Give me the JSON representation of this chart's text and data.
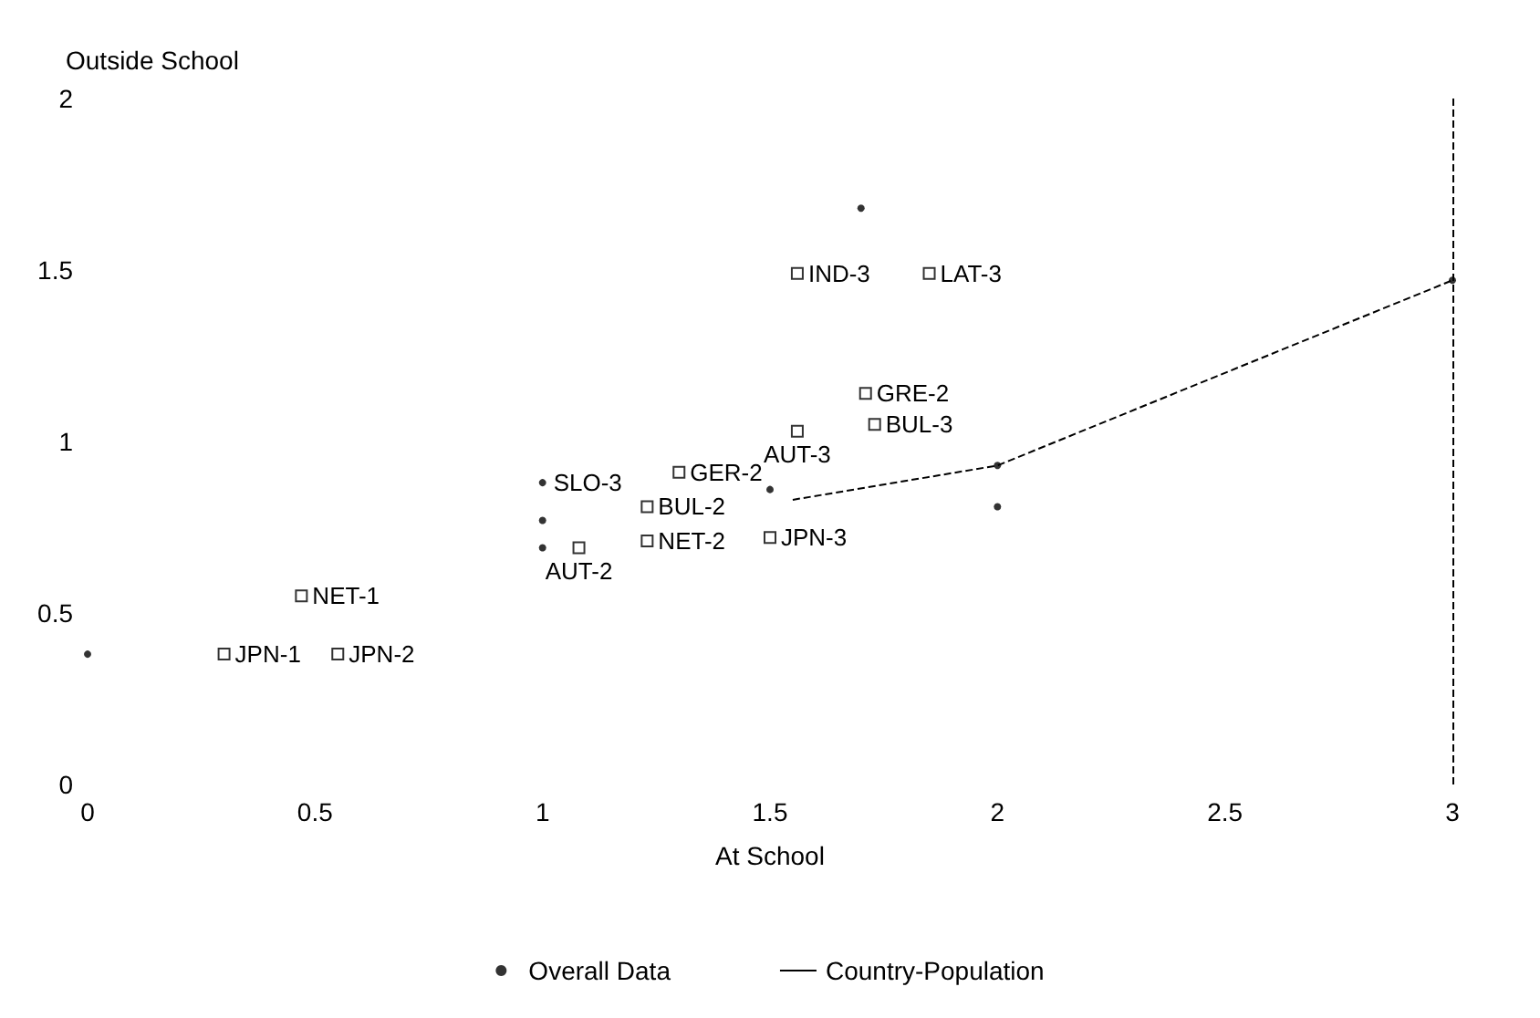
{
  "chart_data": {
    "type": "scatter",
    "xlabel": "At School",
    "ylabel": "Outside School",
    "xlim": [
      0,
      3
    ],
    "xticks": [
      0,
      0.5,
      1,
      1.5,
      2,
      2.5,
      3
    ],
    "ylim": [
      0,
      2
    ],
    "yticks": [
      0,
      0.5,
      1,
      1.5,
      2
    ],
    "grid": false,
    "legend": "bottom",
    "series": [
      {
        "name": "Overall Data",
        "marker": "circle",
        "color": "#000000",
        "x": [
          0,
          1,
          1,
          1,
          1.5,
          1.7,
          2,
          2,
          3
        ],
        "values": [
          0.38,
          0.88,
          0.77,
          0.69,
          0.86,
          1.68,
          0.81,
          0.93,
          1.47
        ]
      },
      {
        "name": "Country-Population",
        "type": "line",
        "marker": "none",
        "line_style": "dashed",
        "color": "#000000",
        "x": [
          1.55,
          2,
          3
        ],
        "values": [
          0.83,
          0.93,
          1.47
        ]
      },
      {
        "marker": "square",
        "color": "#000000",
        "x": [
          0.3,
          0.55,
          0.47,
          1.08,
          1.3,
          1.23,
          1.23,
          1.5,
          1.56,
          1.56,
          1.71,
          1.73,
          1.85
        ],
        "values": [
          0.38,
          0.38,
          0.55,
          0.69,
          0.91,
          0.81,
          0.71,
          0.72,
          1.49,
          1.03,
          1.14,
          1.05,
          1.49
        ]
      }
    ],
    "ref_lines": [
      {
        "axis": "x",
        "value": 3,
        "line_style": "dashed",
        "color": "#000000"
      }
    ],
    "annotations": [
      {
        "text": "JPN-1",
        "x": 0.3,
        "y": 0.38
      },
      {
        "text": "JPN-2",
        "x": 0.55,
        "y": 0.38
      },
      {
        "text": "NET-1",
        "x": 0.47,
        "y": 0.55
      },
      {
        "text": "AUT-2",
        "x": 1.08,
        "y": 0.69
      },
      {
        "text": "SLO-3",
        "x": 1,
        "y": 0.88
      },
      {
        "text": "GER-2",
        "x": 1.3,
        "y": 0.91
      },
      {
        "text": "BUL-2",
        "x": 1.23,
        "y": 0.81
      },
      {
        "text": "NET-2",
        "x": 1.23,
        "y": 0.71
      },
      {
        "text": "JPN-3",
        "x": 1.5,
        "y": 0.72
      },
      {
        "text": "IND-3",
        "x": 1.56,
        "y": 1.49
      },
      {
        "text": "AUT-3",
        "x": 1.56,
        "y": 1.03
      },
      {
        "text": "GRE-2",
        "x": 1.71,
        "y": 1.14
      },
      {
        "text": "BUL-3",
        "x": 1.73,
        "y": 1.05
      },
      {
        "text": "LAT-3",
        "x": 1.85,
        "y": 1.49
      }
    ]
  }
}
